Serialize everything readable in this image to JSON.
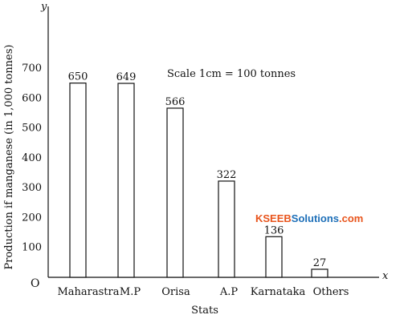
{
  "chart_data": {
    "type": "bar",
    "categories": [
      "Maharastra",
      "M.P",
      "Orisa",
      "A.P",
      "Karnataka",
      "Others"
    ],
    "values": [
      650,
      649,
      566,
      322,
      136,
      27
    ],
    "data_labels": [
      "650",
      "649",
      "566",
      "322",
      "136",
      "27"
    ],
    "xlabel": "Stats",
    "ylabel": "Production if manganese (in 1,000 tonnes)",
    "ylim": [
      0,
      700
    ],
    "yticks": [
      "100",
      "200",
      "300",
      "400",
      "500",
      "600",
      "700"
    ],
    "origin_label": "O",
    "x_axis_letter": "x",
    "y_axis_letter": "y",
    "annotation": "Scale 1cm = 100 tonnes",
    "grid": false,
    "bar_fill": "#ffffff",
    "bar_stroke": "#111111"
  },
  "watermark": {
    "part1": "KSEEB",
    "part2": "Solutions",
    "part3": ".com",
    "color1": "#e8541c",
    "color2": "#1d6fb8",
    "color3": "#e8541c"
  }
}
